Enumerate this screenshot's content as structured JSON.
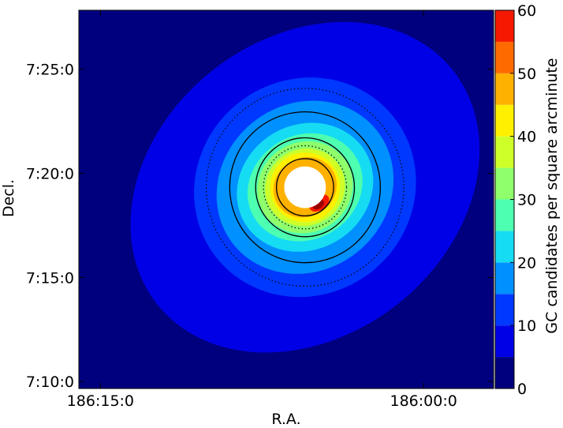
{
  "chart_data": {
    "type": "heatmap",
    "description_free": true,
    "xlabel": "R.A.",
    "ylabel": "Decl.",
    "colorbar_label": "GC candidates per square arcminute",
    "x_ticks": [
      {
        "label": "186:15:0",
        "value": 186.25
      },
      {
        "label": "186:00:0",
        "value": 186.0
      }
    ],
    "y_ticks": [
      {
        "label": "7:10:0",
        "value": 7.1667
      },
      {
        "label": "7:15:0",
        "value": 7.25
      },
      {
        "label": "7:20:0",
        "value": 7.3333
      },
      {
        "label": "7:25:0",
        "value": 7.4167
      }
    ],
    "xlim": [
      186.2667,
      185.9458
    ],
    "ylim": [
      7.1611,
      7.4639
    ],
    "colorbar": {
      "min": 0,
      "max": 60,
      "levels": [
        0,
        5,
        10,
        15,
        20,
        25,
        30,
        35,
        40,
        45,
        50,
        55,
        60
      ],
      "tick_values": [
        0,
        10,
        20,
        30,
        40,
        50,
        60
      ],
      "colors": [
        "#00007f",
        "#0000e6",
        "#0038ff",
        "#0090ff",
        "#16dcf3",
        "#4dffb0",
        "#8fff6b",
        "#cfff29",
        "#fff000",
        "#ffb100",
        "#ff6a00",
        "#f51900",
        "#9b0000"
      ]
    },
    "center": {
      "ra": 186.0917,
      "dec": 7.3222
    },
    "contours": [
      {
        "level": 5,
        "rx": 0.1458,
        "ry": 0.1194
      },
      {
        "level": 10,
        "rx": 0.0875,
        "ry": 0.0861
      },
      {
        "level": 15,
        "rx": 0.0708,
        "ry": 0.0667
      },
      {
        "level": 20,
        "rx": 0.0542,
        "ry": 0.05
      },
      {
        "level": 25,
        "rx": 0.0458,
        "ry": 0.0417
      },
      {
        "level": 30,
        "rx": 0.0375,
        "ry": 0.0361
      },
      {
        "level": 35,
        "rx": 0.0313,
        "ry": 0.0306
      },
      {
        "level": 40,
        "rx": 0.0271,
        "ry": 0.0278
      },
      {
        "level": 45,
        "rx": 0.025,
        "ry": 0.0236
      }
    ],
    "masked_center": {
      "radius_deg": 0.0167
    },
    "solid_circles": [
      {
        "r_deg": 0.0229
      },
      {
        "r_deg": 0.0396
      },
      {
        "r_deg": 0.0604
      }
    ],
    "dotted_circles": [
      {
        "r_deg": 0.0333
      },
      {
        "r_deg": 0.0792
      }
    ],
    "grid": false,
    "legend": "none"
  }
}
